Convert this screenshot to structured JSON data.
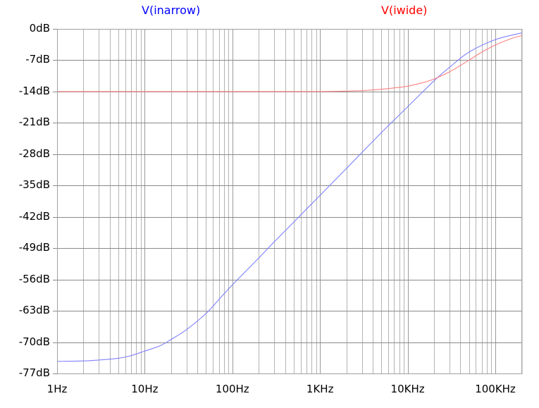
{
  "chart_data": {
    "type": "line",
    "title": "",
    "xlabel": "",
    "ylabel": "",
    "xscale": "log",
    "xlim": [
      1,
      200000
    ],
    "ylim": [
      -77,
      0
    ],
    "grid": true,
    "legend_position": "top",
    "x_ticks": [
      {
        "value": 1,
        "label": "1Hz"
      },
      {
        "value": 10,
        "label": "10Hz"
      },
      {
        "value": 100,
        "label": "100Hz"
      },
      {
        "value": 1000,
        "label": "1KHz"
      },
      {
        "value": 10000,
        "label": "10KHz"
      },
      {
        "value": 100000,
        "label": "100KHz"
      }
    ],
    "y_ticks": [
      {
        "value": 0,
        "label": "0dB"
      },
      {
        "value": -7,
        "label": "-7dB"
      },
      {
        "value": -14,
        "label": "-14dB"
      },
      {
        "value": -21,
        "label": "-21dB"
      },
      {
        "value": -28,
        "label": "-28dB"
      },
      {
        "value": -35,
        "label": "-35dB"
      },
      {
        "value": -42,
        "label": "-42dB"
      },
      {
        "value": -49,
        "label": "-49dB"
      },
      {
        "value": -56,
        "label": "-56dB"
      },
      {
        "value": -63,
        "label": "-63dB"
      },
      {
        "value": -70,
        "label": "-70dB"
      },
      {
        "value": -77,
        "label": "-77dB"
      }
    ],
    "series": [
      {
        "name": "V(inarrow)",
        "color": "#0000ff",
        "line_color": "#8080ff",
        "x": [
          1,
          2,
          3,
          5,
          7,
          10,
          15,
          20,
          30,
          50,
          70,
          100,
          200,
          300,
          500,
          1000,
          2000,
          5000,
          10000,
          20000,
          30000,
          50000,
          100000,
          200000
        ],
        "y": [
          -74.3,
          -74.2,
          -74.0,
          -73.6,
          -73.0,
          -72.0,
          -70.8,
          -69.4,
          -67.2,
          -63.6,
          -60.5,
          -57.2,
          -51.2,
          -47.6,
          -43.2,
          -37.2,
          -31.2,
          -23.2,
          -17.4,
          -11.6,
          -8.6,
          -5.2,
          -2.4,
          -0.9
        ]
      },
      {
        "name": "V(iwide)",
        "color": "#ff0000",
        "line_color": "#ff8080",
        "x": [
          1,
          10,
          100,
          1000,
          2000,
          3000,
          5000,
          7000,
          10000,
          15000,
          20000,
          30000,
          50000,
          70000,
          100000,
          150000,
          200000
        ],
        "y": [
          -14.0,
          -14.0,
          -14.0,
          -14.0,
          -13.9,
          -13.8,
          -13.5,
          -13.2,
          -12.8,
          -12.0,
          -11.2,
          -9.6,
          -7.0,
          -5.2,
          -3.6,
          -2.2,
          -1.5
        ]
      }
    ]
  }
}
